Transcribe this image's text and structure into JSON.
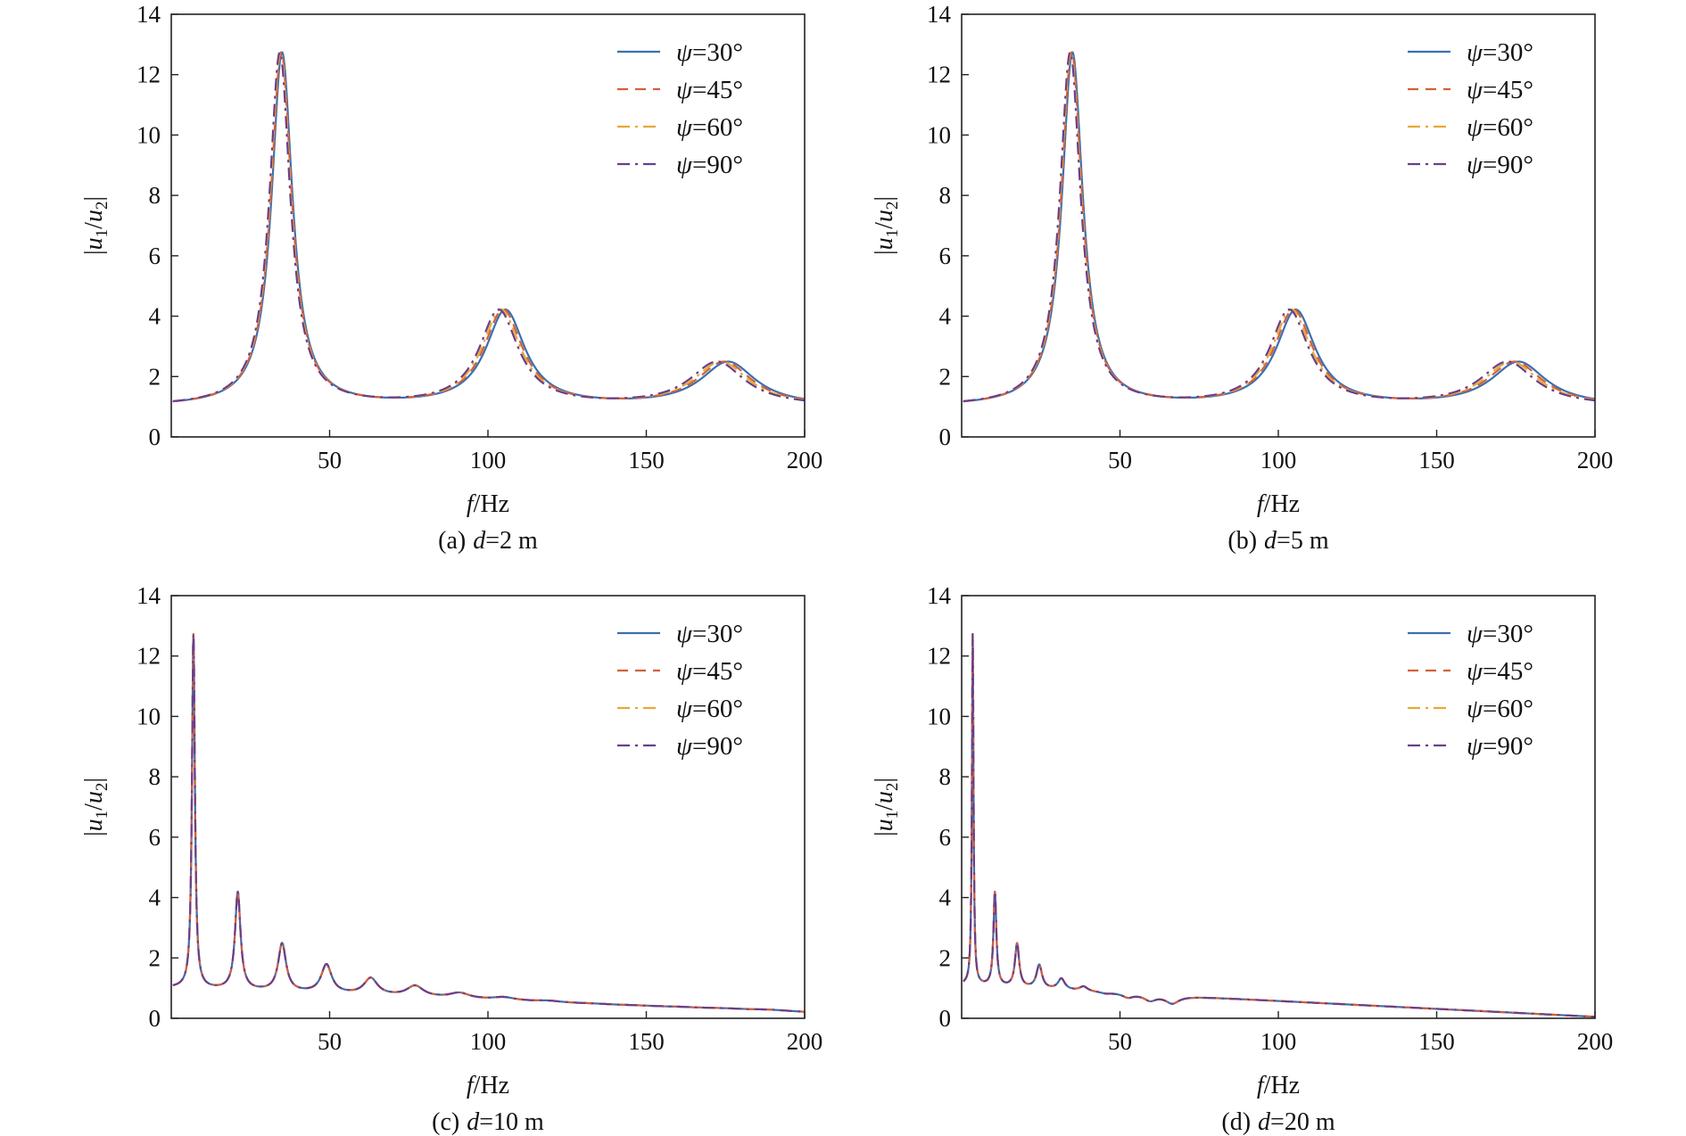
{
  "colors": {
    "psi30": "#3a6fb0",
    "psi45": "#d4603a",
    "psi60": "#e8a935",
    "psi90": "#6b3d8c"
  },
  "chart_data": [
    {
      "type": "line",
      "caption": {
        "label": "(a)",
        "var": "d",
        "rest": "=2 m"
      },
      "xlabel": {
        "var": "f",
        "rest": "/Hz"
      },
      "ylabel": {
        "pre": "|",
        "v1": "u",
        "s1": "1",
        "mid": "/",
        "v2": "u",
        "s2": "2",
        "post": "|"
      },
      "xlim": [
        0,
        200
      ],
      "ylim": [
        0,
        14
      ],
      "xticks": [
        50,
        100,
        150,
        200
      ],
      "yticks": [
        0,
        2,
        4,
        6,
        8,
        10,
        12,
        14
      ],
      "legend_position": "top-right",
      "peaks": [
        [
          34.8,
          12.7,
          4.0
        ],
        [
          105,
          4.15,
          7.5
        ],
        [
          175,
          2.45,
          10.5
        ]
      ],
      "series": [
        {
          "sym": "ψ",
          "rest": "=30°",
          "color": "#3a6fb0",
          "dash": "solid",
          "shift": 1.005
        },
        {
          "sym": "ψ",
          "rest": "=45°",
          "color": "#d4603a",
          "dash": "dashed",
          "shift": 0.998
        },
        {
          "sym": "ψ",
          "rest": "=60°",
          "color": "#e8a935",
          "dash": "dashdot",
          "shift": 0.992
        },
        {
          "sym": "ψ",
          "rest": "=90°",
          "color": "#6b3d8c",
          "dash": "dashdot",
          "shift": 0.985
        }
      ]
    },
    {
      "type": "line",
      "caption": {
        "label": "(b)",
        "var": "d",
        "rest": "=5 m"
      },
      "xlabel": {
        "var": "f",
        "rest": "/Hz"
      },
      "ylabel": {
        "pre": "|",
        "v1": "u",
        "s1": "1",
        "mid": "/",
        "v2": "u",
        "s2": "2",
        "post": "|"
      },
      "xlim": [
        0,
        200
      ],
      "ylim": [
        0,
        14
      ],
      "xticks": [
        50,
        100,
        150,
        200
      ],
      "yticks": [
        0,
        2,
        4,
        6,
        8,
        10,
        12,
        14
      ],
      "legend_position": "top-right",
      "peaks": [
        [
          34.8,
          12.7,
          4.0
        ],
        [
          105,
          4.15,
          7.5
        ],
        [
          175,
          2.45,
          10.5
        ]
      ],
      "series": [
        {
          "sym": "ψ",
          "rest": "=30°",
          "color": "#3a6fb0",
          "dash": "solid",
          "shift": 1.005
        },
        {
          "sym": "ψ",
          "rest": "=45°",
          "color": "#d4603a",
          "dash": "dashed",
          "shift": 0.998
        },
        {
          "sym": "ψ",
          "rest": "=60°",
          "color": "#e8a935",
          "dash": "dashdot",
          "shift": 0.992
        },
        {
          "sym": "ψ",
          "rest": "=90°",
          "color": "#6b3d8c",
          "dash": "dashdot",
          "shift": 0.985
        }
      ]
    },
    {
      "type": "line",
      "caption": {
        "label": "(c)",
        "var": "d",
        "rest": "=10 m"
      },
      "xlabel": {
        "var": "f",
        "rest": "/Hz"
      },
      "ylabel": {
        "pre": "|",
        "v1": "u",
        "s1": "1",
        "mid": "/",
        "v2": "u",
        "s2": "2",
        "post": "|"
      },
      "xlim": [
        0,
        200
      ],
      "ylim": [
        0,
        14
      ],
      "xticks": [
        50,
        100,
        150,
        200
      ],
      "yticks": [
        0,
        2,
        4,
        6,
        8,
        10,
        12,
        14
      ],
      "legend_position": "top-right",
      "peaks": [
        [
          7,
          12.7,
          0.55
        ],
        [
          21,
          4.15,
          1.05
        ],
        [
          35,
          2.45,
          1.5
        ],
        [
          49,
          1.75,
          2.0
        ],
        [
          63,
          1.3,
          2.6
        ],
        [
          77,
          1.05,
          3.2
        ],
        [
          91,
          0.82,
          3.8
        ],
        [
          105,
          0.68,
          4.4
        ],
        [
          119,
          0.57,
          5.0
        ],
        [
          133,
          0.48,
          5.6
        ],
        [
          147,
          0.42,
          6.2
        ],
        [
          161,
          0.37,
          6.8
        ],
        [
          175,
          0.32,
          7.4
        ],
        [
          189,
          0.28,
          8.0
        ]
      ],
      "baseline": [
        1.0,
        0.2
      ],
      "series": [
        {
          "sym": "ψ",
          "rest": "=30°",
          "color": "#3a6fb0",
          "dash": "solid",
          "shift": 1.0
        },
        {
          "sym": "ψ",
          "rest": "=45°",
          "color": "#d4603a",
          "dash": "dashed",
          "shift": 1.0
        },
        {
          "sym": "ψ",
          "rest": "=60°",
          "color": "#e8a935",
          "dash": "dashdot",
          "shift": 1.0
        },
        {
          "sym": "ψ",
          "rest": "=90°",
          "color": "#6b3d8c",
          "dash": "dashdot",
          "shift": 1.0
        }
      ]
    },
    {
      "type": "line",
      "caption": {
        "label": "(d)",
        "var": "d",
        "rest": "=20 m"
      },
      "xlabel": {
        "var": "f",
        "rest": "/Hz"
      },
      "ylabel": {
        "pre": "|",
        "v1": "u",
        "s1": "1",
        "mid": "/",
        "v2": "u",
        "s2": "2",
        "post": "|"
      },
      "xlim": [
        0,
        200
      ],
      "ylim": [
        0,
        14
      ],
      "xticks": [
        50,
        100,
        150,
        200
      ],
      "yticks": [
        0,
        2,
        4,
        6,
        8,
        10,
        12,
        14
      ],
      "legend_position": "top-right",
      "peaks": [
        [
          3.5,
          12.7,
          0.3
        ],
        [
          10.5,
          4.15,
          0.55
        ],
        [
          17.5,
          2.45,
          0.8
        ],
        [
          24.5,
          1.75,
          1.05
        ],
        [
          31.5,
          1.3,
          1.3
        ],
        [
          38.5,
          1.05,
          1.55
        ],
        [
          45.5,
          0.82,
          1.8
        ],
        [
          52.5,
          0.7,
          2.05
        ],
        [
          59.5,
          0.6,
          2.3
        ],
        [
          66.5,
          0.5,
          2.6
        ]
      ],
      "baseline": [
        1.1,
        0.05
      ],
      "series": [
        {
          "sym": "ψ",
          "rest": "=30°",
          "color": "#3a6fb0",
          "dash": "solid",
          "shift": 1.0
        },
        {
          "sym": "ψ",
          "rest": "=45°",
          "color": "#d4603a",
          "dash": "dashed",
          "shift": 1.0
        },
        {
          "sym": "ψ",
          "rest": "=60°",
          "color": "#e8a935",
          "dash": "dashdot",
          "shift": 1.0
        },
        {
          "sym": "ψ",
          "rest": "=90°",
          "color": "#6b3d8c",
          "dash": "dashdot",
          "shift": 1.0
        }
      ]
    }
  ]
}
